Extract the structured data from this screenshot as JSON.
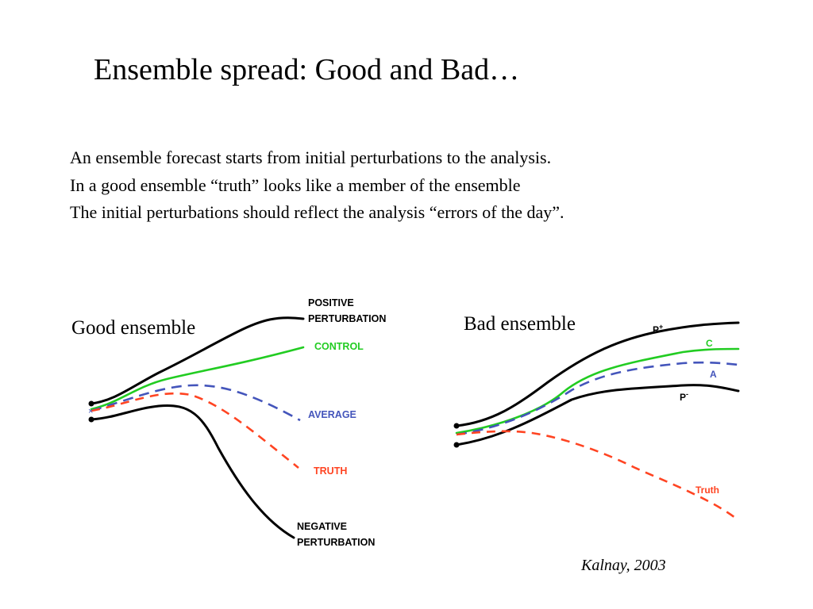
{
  "slide": {
    "title": "Ensemble spread: Good and Bad…",
    "lines": [
      "An ensemble forecast starts from initial perturbations to the analysis.",
      "In a good ensemble “truth” looks like a member of the ensemble",
      "The initial perturbations should reflect the analysis “errors of the day”."
    ],
    "citation": "Kalnay, 2003"
  },
  "colors": {
    "member": "#000000",
    "control": "#22cc22",
    "average": "#4455bb",
    "truth": "#ff4422"
  },
  "good_panel": {
    "title": "Good ensemble",
    "labels": {
      "positive_1": "POSITIVE",
      "positive_2": "PERTURBATION",
      "control": "CONTROL",
      "average": "AVERAGE",
      "truth": "TRUTH",
      "negative_1": "NEGATIVE",
      "negative_2": "PERTURBATION"
    }
  },
  "bad_panel": {
    "title": "Bad ensemble",
    "labels": {
      "p_plus": "P",
      "p_plus_sup": "+",
      "control": "C",
      "average": "A",
      "p_minus": "P",
      "p_minus_sup": "-",
      "truth": "Truth"
    }
  }
}
